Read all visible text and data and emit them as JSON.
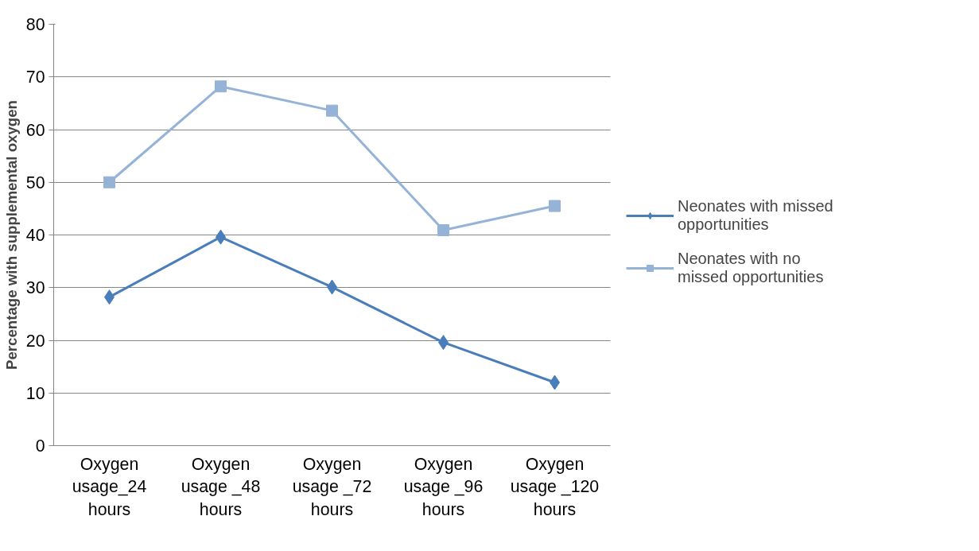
{
  "chart_data": {
    "type": "line",
    "ylabel": "Percentage with supplemental oxygen",
    "categories": [
      "Oxygen usage_24 hours",
      "Oxygen usage _48 hours",
      "Oxygen usage _72 hours",
      "Oxygen usage _96 hours",
      "Oxygen usage _120 hours"
    ],
    "series": [
      {
        "name": "Neonates with missed opportunities",
        "color": "#4a7ebb",
        "marker": "diamond",
        "values": [
          28.2,
          39.6,
          30.1,
          19.6,
          12.0
        ]
      },
      {
        "name": "Neonates with no missed opportunities",
        "color": "#95b3d7",
        "marker": "square",
        "values": [
          50.0,
          68.2,
          63.6,
          40.9,
          45.5
        ]
      }
    ],
    "ylim": [
      0,
      80
    ],
    "yticks": [
      0,
      10,
      20,
      30,
      40,
      50,
      60,
      70,
      80
    ],
    "grid": "y",
    "legend": "right"
  }
}
